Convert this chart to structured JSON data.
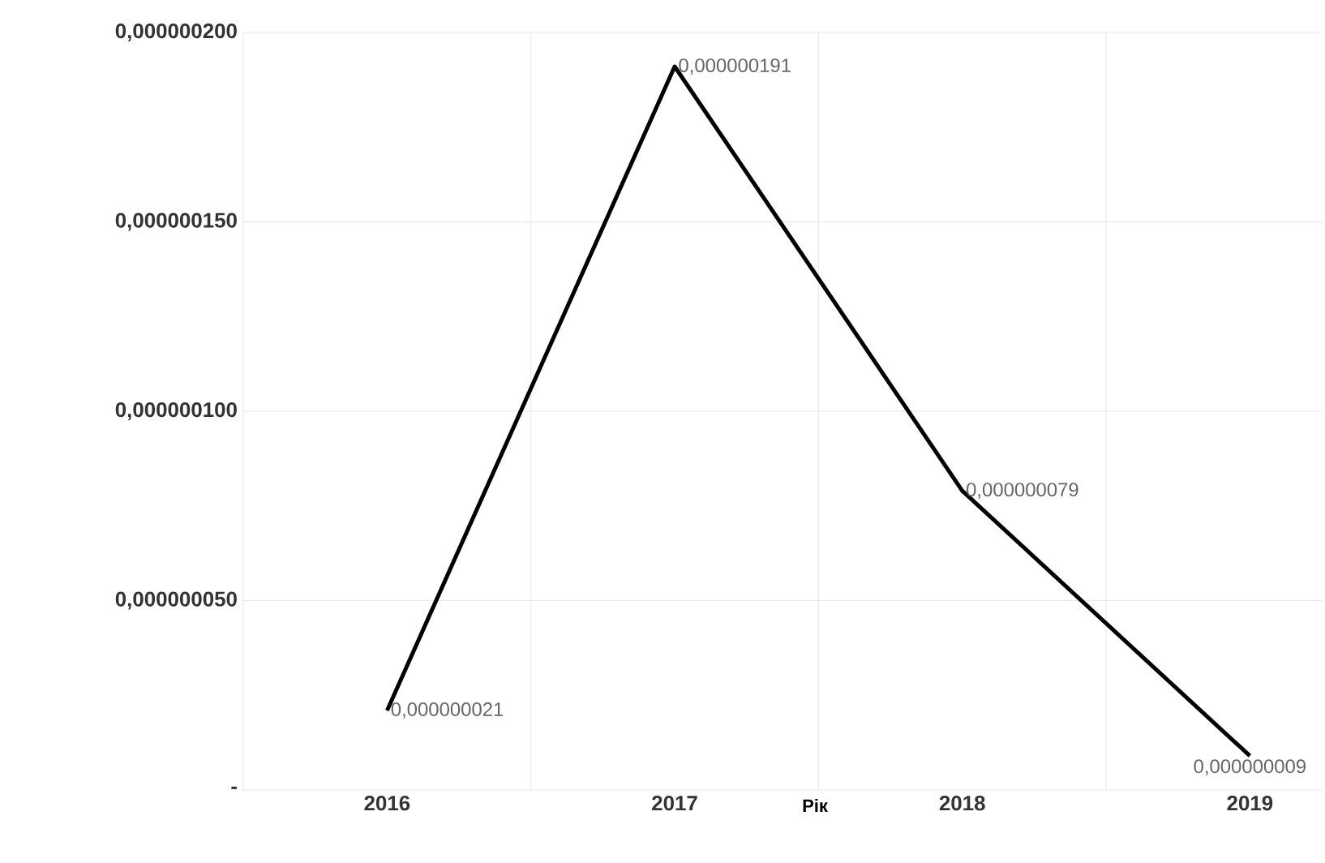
{
  "chart_data": {
    "type": "line",
    "xlabel": "Рік",
    "categories": [
      "2016",
      "2017",
      "2018",
      "2019"
    ],
    "series": [
      {
        "color": "#000000",
        "values": [
          2.1e-08,
          1.91e-07,
          7.9e-08,
          9e-09
        ],
        "value_labels": [
          "0,000000021",
          "0,000000191",
          "0,000000079",
          "0,000000009"
        ]
      }
    ],
    "ylim": [
      0,
      2e-07
    ],
    "yticks": [
      {
        "value": 0,
        "label": "-"
      },
      {
        "value": 5e-08,
        "label": "0,000000050"
      },
      {
        "value": 1e-07,
        "label": "0,000000100"
      },
      {
        "value": 1.5e-07,
        "label": "0,000000150"
      },
      {
        "value": 2e-07,
        "label": "0,000000200"
      }
    ],
    "grid": true,
    "marker": "none",
    "line_style": "solid"
  }
}
